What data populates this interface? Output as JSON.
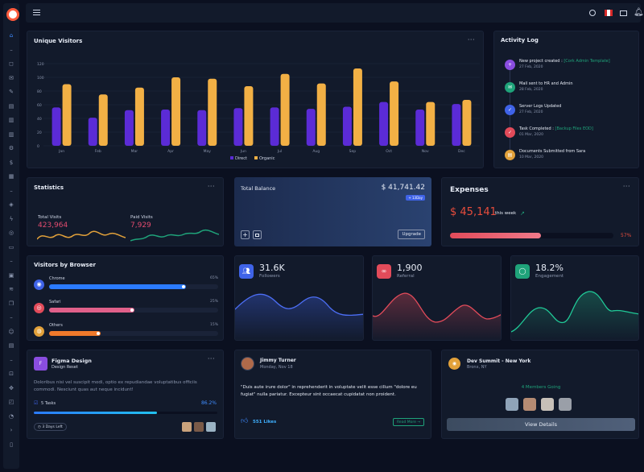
{
  "topbar": {
    "menu_icon": "hamburger-icon",
    "right_icons": [
      "search-icon",
      "flag-icon",
      "mail-icon",
      "bell-icon",
      "user-icon"
    ]
  },
  "sidebar": {
    "icons": [
      "home-icon",
      "minus-icon",
      "chat-icon",
      "mail-icon",
      "edit-icon",
      "file-icon",
      "doc-icon",
      "doc-icon",
      "settings-icon",
      "dollar-icon",
      "calendar-icon",
      "minus-icon",
      "box-icon",
      "bolt-icon",
      "target-icon",
      "monitor-icon",
      "minus-icon",
      "layout-icon",
      "layers-icon",
      "copy-icon",
      "minus-icon",
      "users-icon",
      "file-icon",
      "minus-icon",
      "lock-icon",
      "move-icon",
      "map-icon",
      "pie-icon",
      "terminal-icon",
      "book-icon"
    ]
  },
  "visitors": {
    "title": "Unique Visitors",
    "more": "···"
  },
  "chart_data": {
    "type": "bar",
    "categories": [
      "Jan",
      "Feb",
      "Mar",
      "Apr",
      "May",
      "Jun",
      "Jul",
      "Aug",
      "Sep",
      "Oct",
      "Nov",
      "Dec"
    ],
    "series": [
      {
        "name": "Direct",
        "values": [
          56,
          41,
          52,
          53,
          52,
          55,
          56,
          54,
          57,
          64,
          53,
          61
        ]
      },
      {
        "name": "Organic",
        "values": [
          90,
          75,
          85,
          100,
          98,
          87,
          105,
          91,
          113,
          94,
          64,
          67
        ]
      }
    ],
    "ylim": [
      0,
      120
    ],
    "yticks": [
      0,
      20,
      40,
      60,
      80,
      100,
      120
    ],
    "legend_position": "bottom",
    "colors": {
      "Direct": "#5b2bd6",
      "Organic": "#f2b045"
    }
  },
  "activity": {
    "title": "Activity Log",
    "items": [
      {
        "text": "New project created : ",
        "link": "[Cork Admin Template]",
        "date": "27 Feb, 2020",
        "color": "#8a4de0",
        "icon": "plus-icon"
      },
      {
        "text": "Mail sent to HR and Admin",
        "link": "",
        "date": "28 Feb, 2020",
        "color": "#1fa37a",
        "icon": "mail-icon"
      },
      {
        "text": "Server Logs Updated",
        "link": "",
        "date": "27 Feb, 2020",
        "color": "#3f63e8",
        "icon": "check-icon"
      },
      {
        "text": "Task Completed : ",
        "link": "[Backup Files EOD]",
        "date": "01 Mar, 2020",
        "color": "#e24b5a",
        "icon": "check-icon"
      },
      {
        "text": "Documents Submitted from Sara",
        "link": "",
        "date": "10 Mar, 2020",
        "color": "#e2a13a",
        "icon": "doc-icon"
      }
    ]
  },
  "statistics": {
    "title": "Statistics",
    "more": "···",
    "total_label": "Total Visits",
    "total_value": "423,964",
    "paid_label": "Paid Visits",
    "paid_value": "7,929"
  },
  "balance": {
    "title": "Total Balance",
    "amount": "$ 41,741.42",
    "badge": "+ 13Day",
    "upgrade": "Upgrade"
  },
  "expenses": {
    "title": "Expenses",
    "more": "···",
    "amount": "$ 45,141",
    "period": "this week",
    "percent_label": "57%",
    "percent": 57
  },
  "browsers": {
    "title": "Visitors by Browser",
    "items": [
      {
        "name": "Chrome",
        "pct_label": "65%",
        "pct": 65,
        "color": "#2b7bff",
        "icon": "chrome-icon",
        "icon_color": "#3f63e8"
      },
      {
        "name": "Safari",
        "pct_label": "25%",
        "pct": 25,
        "color": "#e0608a",
        "icon": "safari-icon",
        "icon_color": "#e24b5a"
      },
      {
        "name": "Others",
        "pct_label": "15%",
        "pct": 15,
        "color": "#f07a2b",
        "icon": "globe-icon",
        "icon_color": "#e2a13a"
      }
    ]
  },
  "followers": {
    "value": "31.6K",
    "label": "Followers",
    "color": "#3f63e8"
  },
  "referral": {
    "value": "1,900",
    "label": "Referral",
    "color": "#e24b5a"
  },
  "engagement": {
    "value": "18.2%",
    "label": "Engagement",
    "color": "#1fa37a"
  },
  "figma": {
    "title": "Figma Design",
    "subtitle": "Design Reset",
    "more": "···",
    "desc": "Doloribus nisi vel suscipit modi, optio ex repudiandae voluptatibus officiis commodi. Nesciunt quas aut neque incidunt!",
    "tasks": "5 Tasks",
    "pct_label": "86.2%",
    "pct": 86.2,
    "days_left": "3 Days Left"
  },
  "post": {
    "name": "Jimmy Turner",
    "date": "Monday, Nov 18",
    "quote": "\"Duis aute irure dolor\" in reprehenderit in voluptate velit esse cillum \"dolore eu fugiat\" nulla pariatur. Excepteur sint occaecat cupidatat non proident.",
    "likes": "551 Likes",
    "read_more": "Read More"
  },
  "event": {
    "title": "Dev Summit - New York",
    "location": "Bronx, NY",
    "members": "4 Members Going",
    "button": "View Details"
  }
}
